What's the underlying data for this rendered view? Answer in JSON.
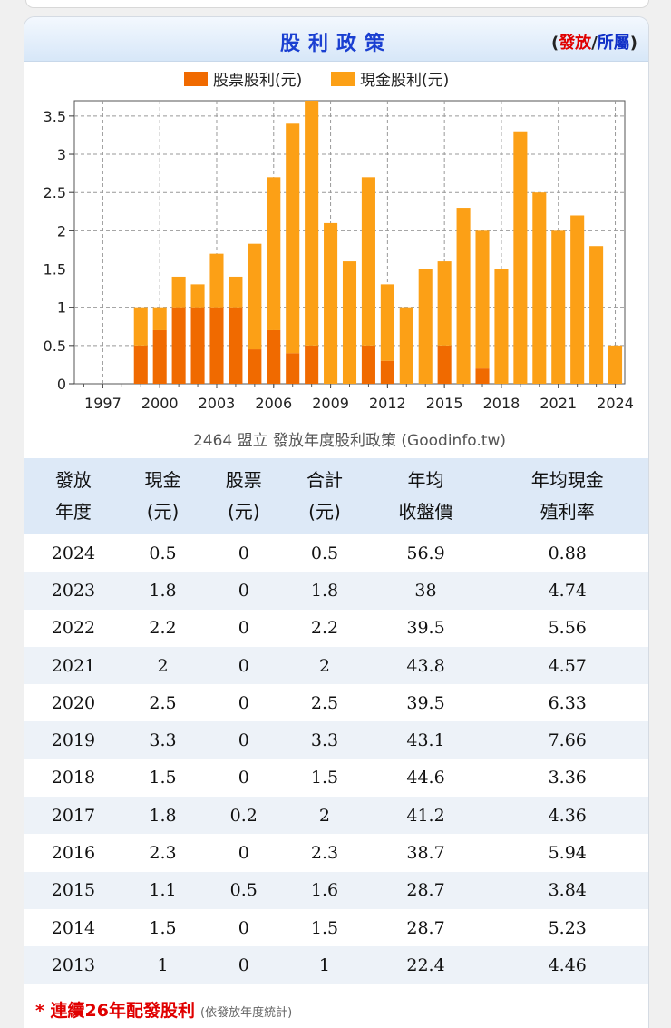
{
  "header": {
    "title": "股利政策",
    "link_open": "(",
    "link_issue": "發放",
    "link_sep": "/",
    "link_belong": "所屬",
    "link_close": ")"
  },
  "chart_data": {
    "type": "bar",
    "stacked": true,
    "title": "2464 盟立 發放年度股利政策 (Goodinfo.tw)",
    "x": [
      1999,
      2000,
      2001,
      2002,
      2003,
      2004,
      2005,
      2006,
      2007,
      2008,
      2009,
      2010,
      2011,
      2012,
      2013,
      2014,
      2015,
      2016,
      2017,
      2018,
      2019,
      2020,
      2021,
      2022,
      2023,
      2024
    ],
    "series": [
      {
        "name": "股票股利(元)",
        "color": "#f06a00",
        "values": [
          0.5,
          0.7,
          1.0,
          1.0,
          1.0,
          1.0,
          0.45,
          0.7,
          0.4,
          0.5,
          0,
          0,
          0.5,
          0.3,
          0,
          0,
          0.5,
          0,
          0.2,
          0,
          0,
          0,
          0,
          0,
          0,
          0
        ]
      },
      {
        "name": "現金股利(元)",
        "color": "#fca016",
        "values": [
          0.5,
          0.3,
          0.4,
          0.3,
          0.7,
          0.4,
          1.38,
          2.0,
          3.0,
          3.3,
          2.1,
          1.6,
          2.2,
          1.0,
          1.0,
          1.5,
          1.1,
          2.3,
          1.8,
          1.5,
          3.3,
          2.5,
          2.0,
          2.2,
          1.8,
          0.5
        ]
      }
    ],
    "xticks": [
      "1997",
      "2000",
      "2003",
      "2006",
      "2009",
      "2012",
      "2015",
      "2018",
      "2021",
      "2024"
    ],
    "yticks": [
      "0",
      "0.5",
      "1",
      "1.5",
      "2",
      "2.5",
      "3",
      "3.5"
    ],
    "ylim": [
      0,
      3.7
    ],
    "xlim": [
      1995.5,
      2024.5
    ],
    "grid": true,
    "legend": "top"
  },
  "table": {
    "headers": [
      {
        "l1": "發放",
        "l2": "年度"
      },
      {
        "l1": "現金",
        "l2": "(元)"
      },
      {
        "l1": "股票",
        "l2": "(元)"
      },
      {
        "l1": "合計",
        "l2": "(元)"
      },
      {
        "l1": "年均",
        "l2": "收盤價"
      },
      {
        "l1": "年均現金",
        "l2": "殖利率"
      }
    ],
    "rows": [
      [
        "2024",
        "0.5",
        "0",
        "0.5",
        "56.9",
        "0.88"
      ],
      [
        "2023",
        "1.8",
        "0",
        "1.8",
        "38",
        "4.74"
      ],
      [
        "2022",
        "2.2",
        "0",
        "2.2",
        "39.5",
        "5.56"
      ],
      [
        "2021",
        "2",
        "0",
        "2",
        "43.8",
        "4.57"
      ],
      [
        "2020",
        "2.5",
        "0",
        "2.5",
        "39.5",
        "6.33"
      ],
      [
        "2019",
        "3.3",
        "0",
        "3.3",
        "43.1",
        "7.66"
      ],
      [
        "2018",
        "1.5",
        "0",
        "1.5",
        "44.6",
        "3.36"
      ],
      [
        "2017",
        "1.8",
        "0.2",
        "2",
        "41.2",
        "4.36"
      ],
      [
        "2016",
        "2.3",
        "0",
        "2.3",
        "38.7",
        "5.94"
      ],
      [
        "2015",
        "1.1",
        "0.5",
        "1.6",
        "28.7",
        "3.84"
      ],
      [
        "2014",
        "1.5",
        "0",
        "1.5",
        "28.7",
        "5.23"
      ],
      [
        "2013",
        "1",
        "0",
        "1",
        "22.4",
        "4.46"
      ]
    ]
  },
  "footer": {
    "note": "* 連續26年配發股利",
    "sub": "(依發放年度統計)"
  }
}
